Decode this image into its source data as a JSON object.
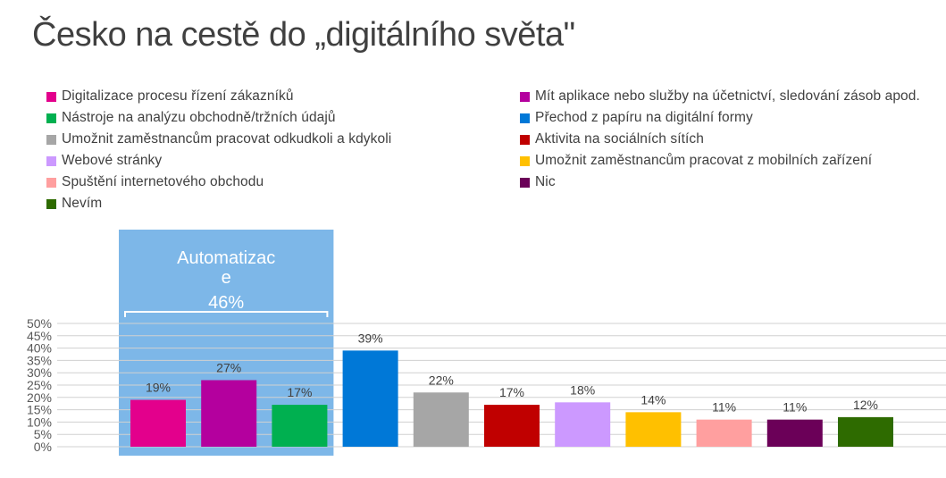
{
  "title": "Česko na cestě do „digitálního světa\"",
  "chart_data": {
    "type": "bar",
    "categories": [
      "Digitalizace procesu řízení zákazníků",
      "Mít aplikace nebo služby na účetnictví, sledování zásob apod.",
      "Nástroje na analýzu obchodně/tržních údajů",
      "Přechod z papíru na digitální formy",
      "Umožnit zaměstnancům pracovat odkudkoli a kdykoli",
      "Aktivita na sociálních sítích",
      "Webové stránky",
      "Umožnit zaměstnancům pracovat z mobilních zařízení",
      "Spuštění internetového obchodu",
      "Nic",
      "Nevím"
    ],
    "values": [
      19,
      27,
      17,
      39,
      22,
      17,
      18,
      14,
      11,
      11,
      12
    ],
    "value_labels": [
      "19%",
      "27%",
      "17%",
      "39%",
      "22%",
      "17%",
      "18%",
      "14%",
      "11%",
      "11%",
      "12%"
    ],
    "colors": [
      "#e3008c",
      "#b4009e",
      "#00b050",
      "#0078d7",
      "#a6a6a6",
      "#c00000",
      "#cc99ff",
      "#ffc000",
      "#ff9f9f",
      "#6b0058",
      "#2e6b00"
    ],
    "yticks": [
      "0%",
      "5%",
      "10%",
      "15%",
      "20%",
      "25%",
      "30%",
      "35%",
      "40%",
      "45%",
      "50%"
    ],
    "ylim": [
      0,
      50
    ],
    "grid": true,
    "legend_position": "top",
    "annotation": {
      "label_line1": "Automatizac",
      "label_line2": "e",
      "value": "46%",
      "color": "#7db7e8",
      "covers_categories": [
        0,
        1,
        2
      ]
    }
  },
  "legend": {
    "left": [
      {
        "label": "Digitalizace procesu řízení zákazníků",
        "color": "#e3008c"
      },
      {
        "label": "Nástroje na analýzu obchodně/tržních údajů",
        "color": "#00b050"
      },
      {
        "label": "Umožnit zaměstnancům pracovat odkudkoli a kdykoli",
        "color": "#a6a6a6"
      },
      {
        "label": "Webové stránky",
        "color": "#cc99ff"
      },
      {
        "label": "Spuštění internetového obchodu",
        "color": "#ff9f9f"
      },
      {
        "label": "Nevím",
        "color": "#2e6b00"
      }
    ],
    "right": [
      {
        "label": "Mít aplikace nebo služby na účetnictví, sledování zásob apod.",
        "color": "#b4009e"
      },
      {
        "label": "Přechod z papíru na digitální formy",
        "color": "#0078d7"
      },
      {
        "label": "Aktivita na sociálních sítích",
        "color": "#c00000"
      },
      {
        "label": "Umožnit zaměstnancům pracovat z mobilních zařízení",
        "color": "#ffc000"
      },
      {
        "label": "Nic",
        "color": "#6b0058"
      }
    ]
  }
}
